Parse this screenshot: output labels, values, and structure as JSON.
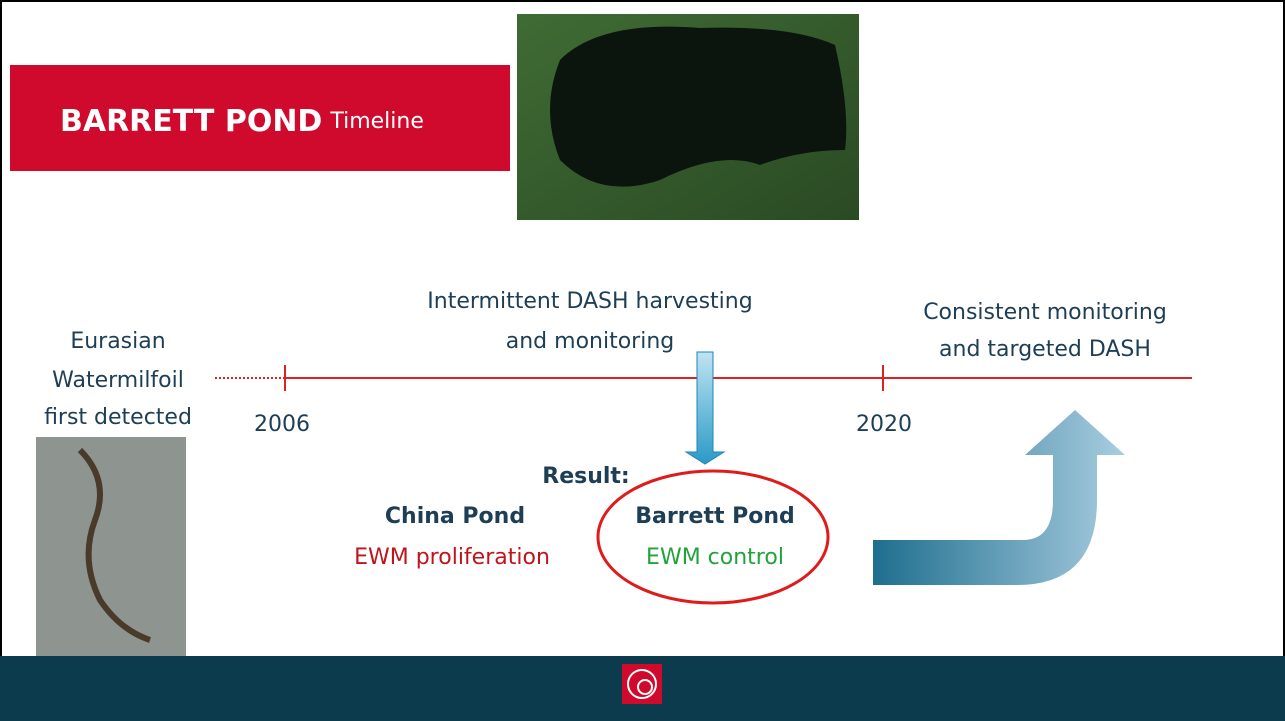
{
  "header": {
    "title_bold": "BARRETT POND",
    "title_rest": "Timeline"
  },
  "timeline": {
    "start_label": [
      "Eurasian",
      "Watermilfoil",
      "first detected"
    ],
    "year_1": "2006",
    "middle_label": [
      "Intermittent DASH harvesting",
      "and monitoring"
    ],
    "year_2": "2020",
    "end_label": [
      "Consistent monitoring",
      "and targeted DASH"
    ]
  },
  "result": {
    "heading": "Result:",
    "left_name": "China Pond",
    "left_outcome": "EWM proliferation",
    "right_name": "Barrett Pond",
    "right_outcome": "EWM control"
  }
}
